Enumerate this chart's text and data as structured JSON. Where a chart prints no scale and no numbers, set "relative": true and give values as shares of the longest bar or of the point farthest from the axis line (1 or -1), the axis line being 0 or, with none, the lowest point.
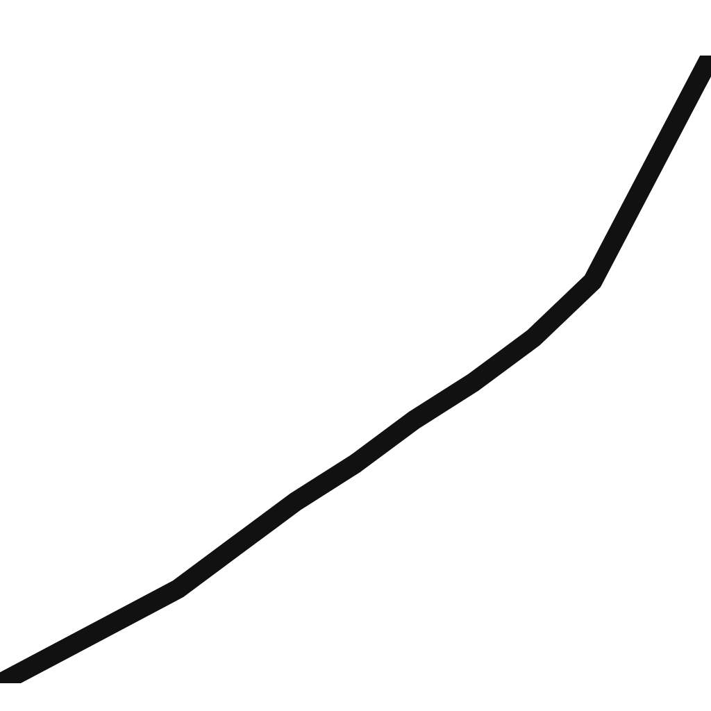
{
  "chart_data": {
    "type": "line",
    "relative": true,
    "categories": [
      null,
      null,
      null,
      null,
      null,
      null,
      null,
      null,
      null,
      null,
      null,
      null,
      null
    ],
    "series": [
      {
        "color": "#111111",
        "values": [
          0,
          0.05,
          0.1,
          0.15,
          0.22,
          0.29,
          0.35,
          0.42,
          0.48,
          0.55,
          0.64,
          0.82,
          1.0
        ]
      }
    ]
  }
}
